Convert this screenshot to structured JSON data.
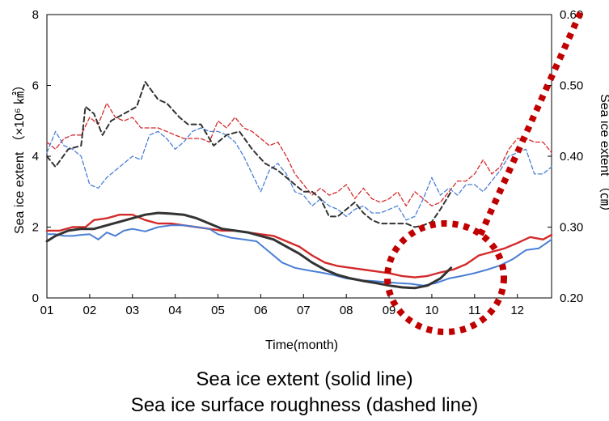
{
  "chart_data": {
    "type": "line",
    "xlabel": "Time(month)",
    "ylabel_left": "Sea ice extent  （×10⁶ ㎢）",
    "ylabel_right": "Sea ice extent  （㎝）",
    "x_ticks": [
      "01",
      "02",
      "03",
      "04",
      "05",
      "06",
      "07",
      "08",
      "09",
      "10",
      "11",
      "12"
    ],
    "x_range": [
      1,
      12.8
    ],
    "ylim_left": [
      0,
      8
    ],
    "yticks_left": [
      "0",
      "2",
      "4",
      "6",
      "8"
    ],
    "ylim_right": [
      0.2,
      0.6
    ],
    "yticks_right": [
      "0.20",
      "0.30",
      "0.40",
      "0.50",
      "0.60"
    ],
    "grid": false,
    "series": [
      {
        "style": "solid",
        "axis": "left",
        "color": "#d42a2a",
        "width": 2.4,
        "x": [
          1.0,
          1.3,
          1.6,
          1.9,
          2.1,
          2.4,
          2.7,
          3.0,
          3.3,
          3.6,
          3.9,
          4.2,
          4.5,
          4.8,
          5.1,
          5.4,
          5.7,
          6.0,
          6.3,
          6.6,
          6.9,
          7.2,
          7.5,
          7.8,
          8.1,
          8.4,
          8.7,
          9.0,
          9.3,
          9.6,
          9.9,
          10.2,
          10.5,
          10.8,
          11.1,
          11.4,
          11.7,
          12.0,
          12.3,
          12.6,
          12.8
        ],
        "y": [
          1.9,
          1.9,
          2.0,
          2.0,
          2.2,
          2.25,
          2.35,
          2.35,
          2.2,
          2.1,
          2.1,
          2.05,
          2.0,
          1.95,
          1.9,
          1.9,
          1.85,
          1.8,
          1.75,
          1.6,
          1.45,
          1.2,
          1.0,
          0.9,
          0.85,
          0.8,
          0.75,
          0.7,
          0.62,
          0.58,
          0.62,
          0.72,
          0.8,
          0.95,
          1.2,
          1.3,
          1.4,
          1.55,
          1.72,
          1.65,
          1.78
        ]
      },
      {
        "style": "solid",
        "axis": "left",
        "color": "#4a7fd6",
        "width": 2.0,
        "x": [
          1.0,
          1.2,
          1.4,
          1.6,
          1.8,
          2.0,
          2.2,
          2.4,
          2.6,
          2.8,
          3.0,
          3.3,
          3.6,
          3.9,
          4.2,
          4.5,
          4.8,
          5.0,
          5.3,
          5.6,
          5.9,
          6.2,
          6.5,
          6.8,
          7.1,
          7.4,
          7.7,
          8.0,
          8.3,
          8.6,
          8.9,
          9.2,
          9.5,
          9.8,
          10.1,
          10.4,
          10.7,
          11.0,
          11.3,
          11.6,
          11.9,
          12.2,
          12.5,
          12.8
        ],
        "y": [
          1.8,
          1.8,
          1.75,
          1.75,
          1.78,
          1.8,
          1.65,
          1.85,
          1.75,
          1.9,
          1.95,
          1.88,
          2.0,
          2.05,
          2.05,
          2.0,
          1.95,
          1.8,
          1.7,
          1.65,
          1.6,
          1.3,
          1.0,
          0.85,
          0.78,
          0.72,
          0.65,
          0.55,
          0.5,
          0.48,
          0.45,
          0.42,
          0.4,
          0.35,
          0.42,
          0.55,
          0.62,
          0.7,
          0.8,
          0.92,
          1.1,
          1.35,
          1.4,
          1.65
        ]
      },
      {
        "style": "solid",
        "axis": "left",
        "color": "#333333",
        "width": 3.0,
        "x": [
          1.0,
          1.2,
          1.5,
          1.8,
          2.1,
          2.4,
          2.7,
          3.0,
          3.3,
          3.6,
          3.9,
          4.2,
          4.5,
          4.8,
          5.1,
          5.4,
          5.7,
          6.0,
          6.3,
          6.6,
          6.9,
          7.2,
          7.5,
          7.8,
          8.1,
          8.4,
          8.7,
          9.0,
          9.3,
          9.6,
          9.9,
          10.2,
          10.45
        ],
        "y": [
          1.6,
          1.75,
          1.9,
          1.95,
          1.95,
          2.05,
          2.15,
          2.25,
          2.35,
          2.4,
          2.38,
          2.35,
          2.25,
          2.1,
          1.95,
          1.9,
          1.85,
          1.75,
          1.65,
          1.45,
          1.25,
          1.0,
          0.8,
          0.65,
          0.55,
          0.48,
          0.42,
          0.35,
          0.3,
          0.28,
          0.35,
          0.55,
          0.85
        ]
      },
      {
        "style": "dashed",
        "axis": "left",
        "color": "#d42a2a",
        "width": 1.3,
        "x": [
          1.0,
          1.2,
          1.4,
          1.6,
          1.8,
          2.0,
          2.2,
          2.4,
          2.6,
          2.8,
          3.0,
          3.2,
          3.4,
          3.6,
          3.8,
          4.0,
          4.2,
          4.4,
          4.6,
          4.8,
          5.0,
          5.2,
          5.4,
          5.6,
          5.8,
          6.0,
          6.2,
          6.4,
          6.6,
          6.8,
          7.0,
          7.2,
          7.4,
          7.6,
          7.8,
          8.0,
          8.2,
          8.4,
          8.6,
          8.8,
          9.0,
          9.2,
          9.4,
          9.6,
          9.8,
          10.0,
          10.2,
          10.4,
          10.6,
          10.8,
          11.0,
          11.2,
          11.4,
          11.6,
          11.8,
          12.0,
          12.2,
          12.4,
          12.6,
          12.8
        ],
        "y": [
          4.4,
          4.2,
          4.5,
          4.6,
          4.6,
          5.1,
          4.9,
          5.5,
          5.1,
          5.0,
          5.1,
          4.8,
          4.8,
          4.8,
          4.7,
          4.6,
          4.5,
          4.5,
          4.5,
          4.4,
          5.0,
          4.8,
          5.1,
          4.8,
          4.7,
          4.5,
          4.3,
          4.4,
          4.0,
          3.5,
          3.2,
          2.9,
          3.1,
          2.9,
          3.0,
          3.2,
          2.8,
          3.1,
          2.8,
          2.7,
          2.8,
          3.0,
          2.6,
          3.0,
          2.8,
          2.6,
          2.7,
          3.0,
          3.3,
          3.3,
          3.5,
          3.9,
          3.5,
          3.7,
          4.2,
          4.5,
          4.5,
          4.4,
          4.4,
          4.1
        ]
      },
      {
        "style": "dashed",
        "axis": "left",
        "color": "#4a7fd6",
        "width": 1.3,
        "x": [
          1.0,
          1.2,
          1.4,
          1.6,
          1.8,
          2.0,
          2.2,
          2.4,
          2.6,
          2.8,
          3.0,
          3.2,
          3.4,
          3.6,
          3.8,
          4.0,
          4.2,
          4.4,
          4.6,
          4.8,
          5.0,
          5.2,
          5.4,
          5.6,
          5.8,
          6.0,
          6.2,
          6.4,
          6.6,
          6.8,
          7.0,
          7.2,
          7.4,
          7.6,
          7.8,
          8.0,
          8.2,
          8.4,
          8.6,
          8.8,
          9.0,
          9.2,
          9.4,
          9.6,
          9.8,
          10.0,
          10.2,
          10.4,
          10.6,
          10.8,
          11.0,
          11.2,
          11.4,
          11.6,
          11.8,
          12.0,
          12.2,
          12.4,
          12.6,
          12.8
        ],
        "y": [
          4.1,
          4.7,
          4.3,
          4.2,
          4.0,
          3.2,
          3.1,
          3.4,
          3.6,
          3.8,
          4.0,
          3.9,
          4.6,
          4.7,
          4.5,
          4.2,
          4.4,
          4.7,
          4.8,
          4.7,
          4.7,
          4.6,
          4.4,
          4.0,
          3.5,
          3.0,
          3.6,
          3.8,
          3.5,
          3.0,
          2.9,
          2.6,
          2.8,
          2.6,
          2.5,
          2.3,
          2.5,
          2.6,
          2.4,
          2.4,
          2.5,
          2.6,
          2.2,
          2.3,
          2.8,
          3.4,
          2.9,
          3.1,
          2.9,
          3.2,
          3.2,
          3.0,
          3.3,
          3.6,
          4.0,
          4.1,
          4.2,
          3.5,
          3.5,
          3.7
        ]
      },
      {
        "style": "dashed",
        "axis": "left",
        "color": "#333333",
        "width": 2.0,
        "x": [
          1.0,
          1.2,
          1.5,
          1.8,
          1.9,
          2.1,
          2.3,
          2.5,
          2.8,
          3.1,
          3.3,
          3.6,
          3.8,
          4.1,
          4.3,
          4.6,
          4.9,
          5.2,
          5.5,
          5.8,
          6.1,
          6.4,
          6.7,
          7.0,
          7.2,
          7.4,
          7.6,
          7.8,
          8.0,
          8.2,
          8.4,
          8.6,
          8.8,
          9.0,
          9.2,
          9.4,
          9.6,
          9.8,
          10.0,
          10.2,
          10.45
        ],
        "y": [
          4.0,
          3.7,
          4.2,
          4.3,
          5.4,
          5.2,
          4.6,
          5.0,
          5.2,
          5.4,
          6.1,
          5.6,
          5.5,
          5.1,
          4.9,
          4.9,
          4.3,
          4.6,
          4.7,
          4.2,
          3.8,
          3.6,
          3.3,
          3.0,
          3.0,
          2.8,
          2.3,
          2.3,
          2.5,
          2.7,
          2.4,
          2.2,
          2.1,
          2.1,
          2.1,
          2.1,
          2.0,
          2.05,
          2.15,
          2.5,
          3.0
        ]
      }
    ]
  },
  "caption": {
    "line1": "Sea ice extent (solid line)",
    "line2": "Sea ice surface roughness (dashed line)"
  },
  "annotation_color": "#c00000"
}
